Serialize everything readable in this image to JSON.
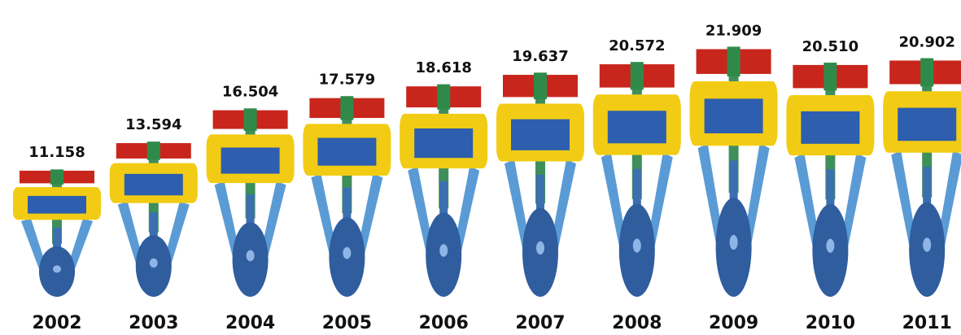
{
  "chart_data": {
    "type": "bar",
    "categories": [
      "2002",
      "2003",
      "2004",
      "2005",
      "2006",
      "2007",
      "2008",
      "2009",
      "2010",
      "2011"
    ],
    "values": [
      11.158,
      13.594,
      16.504,
      17.579,
      18.618,
      19.637,
      20.572,
      21.909,
      20.51,
      20.902
    ],
    "value_labels": [
      "11.158",
      "13.594",
      "16.504",
      "17.579",
      "18.618",
      "19.637",
      "20.572",
      "21.909",
      "20.510",
      "20.902"
    ]
  }
}
